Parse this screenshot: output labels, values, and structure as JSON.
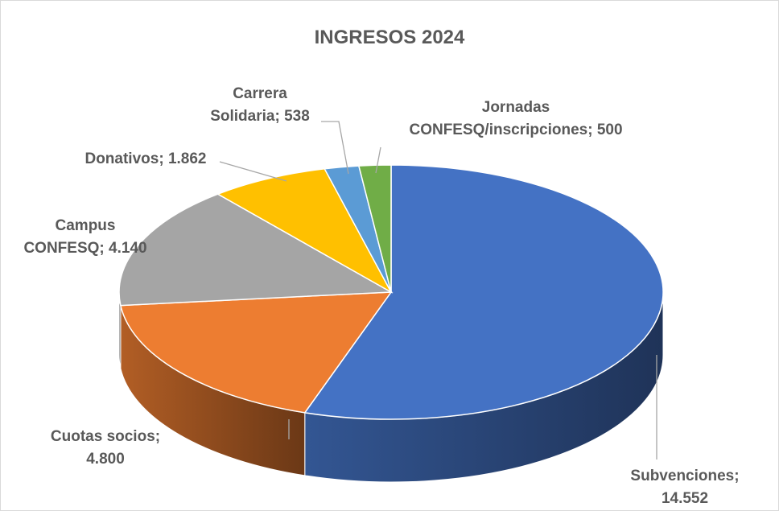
{
  "chart_data": {
    "type": "pie",
    "title": "INGRESOS 2024",
    "categories": [
      "Subvenciones;",
      "Cuotas socios;",
      "Campus CONFESQ;",
      "Donativos;",
      "Carrera Solidaria;",
      "Jornadas CONFESQ/inscripciones;"
    ],
    "values": [
      14552,
      4800,
      4140,
      1862,
      538,
      500
    ],
    "value_labels": [
      "14.552",
      "4.800",
      "4.140",
      "1.862",
      "538",
      "500"
    ],
    "colors": [
      "#4472c4",
      "#ed7d31",
      "#a5a5a5",
      "#ffc000",
      "#5b9bd5",
      "#70ad47"
    ]
  }
}
